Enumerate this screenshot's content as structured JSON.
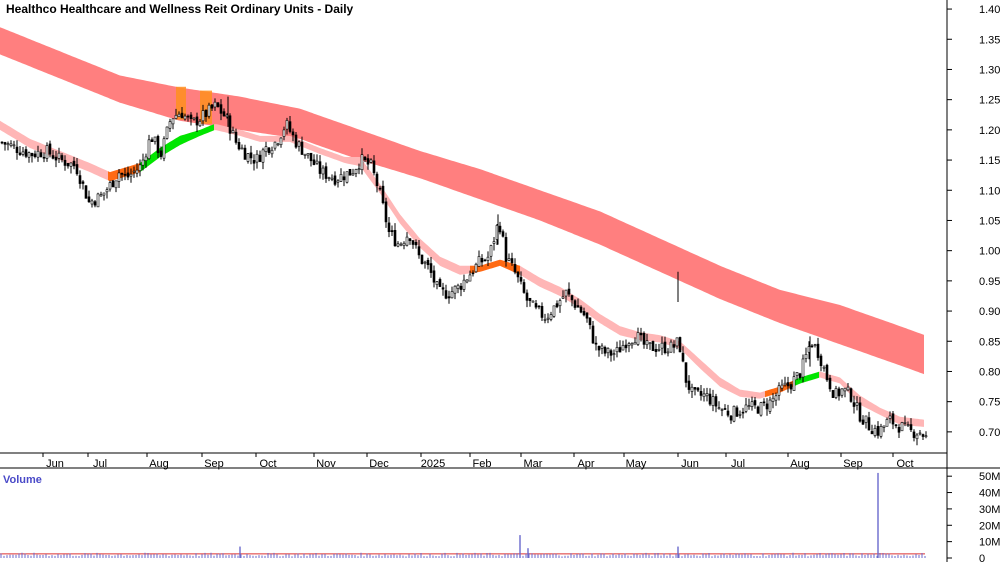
{
  "chart_data": [
    {
      "type": "candlestick",
      "title": "Healthco Healthcare and Wellness Reit Ordinary Units - Daily",
      "x_tick_labels": [
        "Jun",
        "Jul",
        "Aug",
        "Sep",
        "Oct",
        "Nov",
        "Dec",
        "2025",
        "Feb",
        "Mar",
        "Apr",
        "May",
        "Jun",
        "Jul",
        "Aug",
        "Sep",
        "Oct"
      ],
      "y_tick_labels": [
        "1.40",
        "1.35",
        "1.30",
        "1.25",
        "1.20",
        "1.15",
        "1.10",
        "1.05",
        "1.00",
        "0.95",
        "0.90",
        "0.85",
        "0.80",
        "0.75",
        "0.70"
      ],
      "ylim": [
        0.665,
        1.415
      ],
      "grid": false,
      "price_path": [
        [
          0,
          1.18
        ],
        [
          15,
          1.17
        ],
        [
          30,
          1.16
        ],
        [
          45,
          1.165
        ],
        [
          60,
          1.15
        ],
        [
          75,
          1.14
        ],
        [
          88,
          1.08
        ],
        [
          100,
          1.09
        ],
        [
          110,
          1.11
        ],
        [
          118,
          1.13
        ],
        [
          125,
          1.12
        ],
        [
          140,
          1.14
        ],
        [
          150,
          1.19
        ],
        [
          160,
          1.16
        ],
        [
          170,
          1.22
        ],
        [
          180,
          1.23
        ],
        [
          190,
          1.21
        ],
        [
          200,
          1.22
        ],
        [
          215,
          1.24
        ],
        [
          225,
          1.22
        ],
        [
          235,
          1.18
        ],
        [
          245,
          1.16
        ],
        [
          255,
          1.15
        ],
        [
          265,
          1.17
        ],
        [
          275,
          1.18
        ],
        [
          285,
          1.21
        ],
        [
          295,
          1.18
        ],
        [
          305,
          1.16
        ],
        [
          320,
          1.13
        ],
        [
          335,
          1.12
        ],
        [
          350,
          1.13
        ],
        [
          360,
          1.15
        ],
        [
          370,
          1.14
        ],
        [
          378,
          1.1
        ],
        [
          388,
          1.03
        ],
        [
          398,
          1.01
        ],
        [
          408,
          1.03
        ],
        [
          418,
          0.99
        ],
        [
          428,
          0.97
        ],
        [
          438,
          0.93
        ],
        [
          448,
          0.93
        ],
        [
          458,
          0.94
        ],
        [
          468,
          0.96
        ],
        [
          478,
          0.98
        ],
        [
          488,
          0.99
        ],
        [
          498,
          1.05
        ],
        [
          505,
          0.99
        ],
        [
          515,
          0.96
        ],
        [
          525,
          0.92
        ],
        [
          535,
          0.9
        ],
        [
          545,
          0.89
        ],
        [
          555,
          0.91
        ],
        [
          565,
          0.93
        ],
        [
          575,
          0.91
        ],
        [
          585,
          0.89
        ],
        [
          595,
          0.84
        ],
        [
          605,
          0.83
        ],
        [
          615,
          0.83
        ],
        [
          625,
          0.85
        ],
        [
          635,
          0.86
        ],
        [
          645,
          0.84
        ],
        [
          655,
          0.84
        ],
        [
          665,
          0.84
        ],
        [
          672,
          0.84
        ],
        [
          678,
          0.85
        ],
        [
          684,
          0.79
        ],
        [
          692,
          0.76
        ],
        [
          705,
          0.76
        ],
        [
          718,
          0.74
        ],
        [
          730,
          0.73
        ],
        [
          745,
          0.74
        ],
        [
          760,
          0.74
        ],
        [
          770,
          0.75
        ],
        [
          780,
          0.77
        ],
        [
          790,
          0.78
        ],
        [
          800,
          0.8
        ],
        [
          810,
          0.85
        ],
        [
          818,
          0.83
        ],
        [
          826,
          0.79
        ],
        [
          834,
          0.76
        ],
        [
          842,
          0.77
        ],
        [
          850,
          0.76
        ],
        [
          858,
          0.73
        ],
        [
          868,
          0.71
        ],
        [
          878,
          0.7
        ],
        [
          888,
          0.72
        ],
        [
          898,
          0.71
        ],
        [
          910,
          0.7
        ],
        [
          920,
          0.7
        ],
        [
          925,
          0.69
        ]
      ],
      "moving_average_band_upper": [
        [
          0,
          1.37
        ],
        [
          60,
          1.33
        ],
        [
          120,
          1.29
        ],
        [
          180,
          1.27
        ],
        [
          240,
          1.255
        ],
        [
          300,
          1.235
        ],
        [
          360,
          1.2
        ],
        [
          420,
          1.165
        ],
        [
          480,
          1.135
        ],
        [
          540,
          1.1
        ],
        [
          600,
          1.065
        ],
        [
          660,
          1.02
        ],
        [
          720,
          0.975
        ],
        [
          780,
          0.935
        ],
        [
          840,
          0.91
        ],
        [
          900,
          0.875
        ],
        [
          925,
          0.86
        ]
      ],
      "moving_average_band_lower": [
        [
          0,
          1.325
        ],
        [
          60,
          1.285
        ],
        [
          120,
          1.245
        ],
        [
          180,
          1.215
        ],
        [
          240,
          1.2
        ],
        [
          300,
          1.185
        ],
        [
          360,
          1.15
        ],
        [
          420,
          1.12
        ],
        [
          480,
          1.085
        ],
        [
          540,
          1.05
        ],
        [
          600,
          1.01
        ],
        [
          660,
          0.965
        ],
        [
          720,
          0.92
        ],
        [
          780,
          0.88
        ],
        [
          840,
          0.845
        ],
        [
          900,
          0.81
        ],
        [
          925,
          0.795
        ]
      ],
      "short_moving_average_upper": [
        [
          0,
          1.215
        ],
        [
          30,
          1.185
        ],
        [
          60,
          1.165
        ],
        [
          90,
          1.145
        ],
        [
          110,
          1.13
        ],
        [
          120,
          1.135
        ],
        [
          140,
          1.145
        ],
        [
          160,
          1.17
        ],
        [
          180,
          1.19
        ],
        [
          200,
          1.2
        ],
        [
          215,
          1.21
        ],
        [
          240,
          1.2
        ],
        [
          260,
          1.19
        ],
        [
          290,
          1.19
        ],
        [
          320,
          1.17
        ],
        [
          345,
          1.155
        ],
        [
          360,
          1.155
        ],
        [
          380,
          1.11
        ],
        [
          400,
          1.06
        ],
        [
          420,
          1.02
        ],
        [
          440,
          0.99
        ],
        [
          460,
          0.975
        ],
        [
          480,
          0.975
        ],
        [
          500,
          0.985
        ],
        [
          520,
          0.975
        ],
        [
          540,
          0.955
        ],
        [
          560,
          0.94
        ],
        [
          580,
          0.92
        ],
        [
          600,
          0.895
        ],
        [
          620,
          0.875
        ],
        [
          640,
          0.865
        ],
        [
          660,
          0.86
        ],
        [
          680,
          0.85
        ],
        [
          700,
          0.82
        ],
        [
          720,
          0.79
        ],
        [
          740,
          0.77
        ],
        [
          760,
          0.765
        ],
        [
          780,
          0.775
        ],
        [
          800,
          0.79
        ],
        [
          820,
          0.8
        ],
        [
          840,
          0.79
        ],
        [
          860,
          0.76
        ],
        [
          880,
          0.74
        ],
        [
          900,
          0.725
        ],
        [
          925,
          0.72
        ]
      ],
      "short_moving_average_lower": [
        [
          0,
          1.2
        ],
        [
          30,
          1.17
        ],
        [
          60,
          1.15
        ],
        [
          90,
          1.13
        ],
        [
          110,
          1.115
        ],
        [
          120,
          1.12
        ],
        [
          140,
          1.13
        ],
        [
          160,
          1.155
        ],
        [
          180,
          1.175
        ],
        [
          200,
          1.19
        ],
        [
          215,
          1.2
        ],
        [
          240,
          1.19
        ],
        [
          260,
          1.18
        ],
        [
          290,
          1.18
        ],
        [
          320,
          1.16
        ],
        [
          345,
          1.145
        ],
        [
          360,
          1.14
        ],
        [
          380,
          1.095
        ],
        [
          400,
          1.045
        ],
        [
          420,
          1.005
        ],
        [
          440,
          0.975
        ],
        [
          460,
          0.96
        ],
        [
          480,
          0.965
        ],
        [
          500,
          0.975
        ],
        [
          520,
          0.96
        ],
        [
          540,
          0.94
        ],
        [
          560,
          0.925
        ],
        [
          580,
          0.905
        ],
        [
          600,
          0.88
        ],
        [
          620,
          0.86
        ],
        [
          640,
          0.852
        ],
        [
          660,
          0.848
        ],
        [
          680,
          0.838
        ],
        [
          700,
          0.805
        ],
        [
          720,
          0.775
        ],
        [
          740,
          0.758
        ],
        [
          760,
          0.755
        ],
        [
          780,
          0.765
        ],
        [
          800,
          0.78
        ],
        [
          820,
          0.79
        ],
        [
          840,
          0.78
        ],
        [
          860,
          0.745
        ],
        [
          880,
          0.728
        ],
        [
          900,
          0.712
        ],
        [
          925,
          0.708
        ]
      ],
      "trend_segments": [
        {
          "state": "rising",
          "color": "#00e600",
          "x_range": [
            140,
            215
          ]
        },
        {
          "state": "rising",
          "color": "#00e600",
          "x_range": [
            795,
            820
          ]
        },
        {
          "state": "transition",
          "color": "#ff6a13",
          "x_range": [
            108,
            140
          ]
        },
        {
          "state": "transition",
          "color": "#ff6a13",
          "x_range": [
            470,
            520
          ]
        },
        {
          "state": "transition",
          "color": "#ff6a13",
          "x_range": [
            765,
            795
          ]
        }
      ],
      "highlight_columns": [
        [
          176,
          186
        ],
        [
          200,
          212
        ]
      ],
      "colors": {
        "candle": "#000000",
        "long_band": "#ff7f7f",
        "short_band": "#ffb6b6",
        "rising": "#00e600",
        "transition": "#ff6a13",
        "highlight": "#ff8f1f"
      }
    },
    {
      "type": "bar",
      "title": "Volume",
      "y_tick_labels": [
        "50M",
        "40M",
        "30M",
        "20M",
        "10M",
        "0"
      ],
      "ylim": [
        0,
        55
      ],
      "spikes": [
        [
          240,
          7
        ],
        [
          520,
          14
        ],
        [
          528,
          6
        ],
        [
          678,
          7
        ],
        [
          878,
          52
        ]
      ],
      "baseline_value": 2.5,
      "colors": {
        "bar": "#6a6acc",
        "baseline": "#dd3333"
      }
    }
  ]
}
